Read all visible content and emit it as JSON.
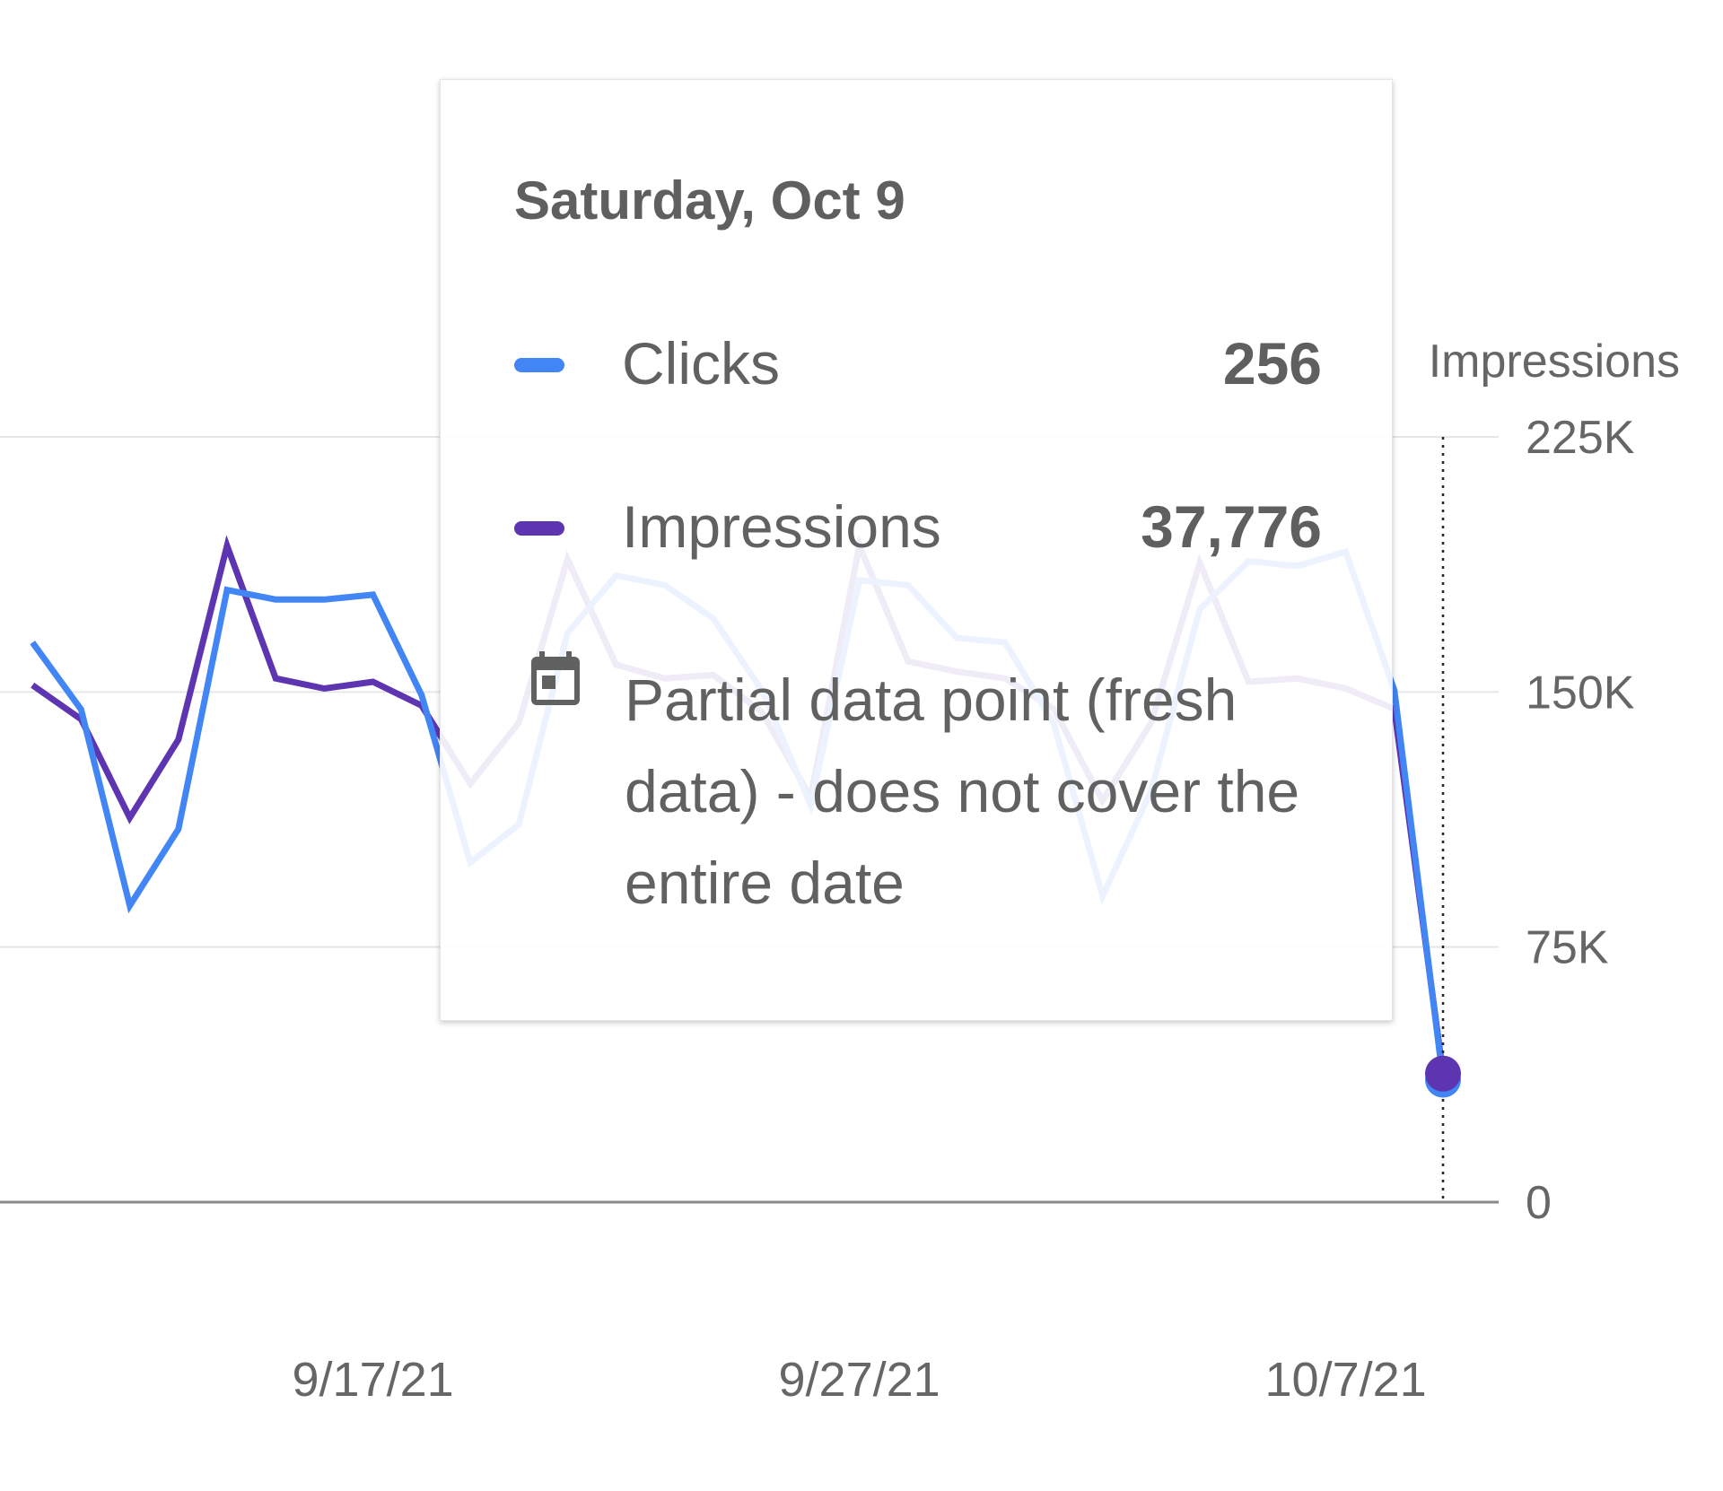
{
  "chart_data": {
    "type": "line",
    "x": [
      "9/10/21",
      "9/11/21",
      "9/12/21",
      "9/13/21",
      "9/14/21",
      "9/15/21",
      "9/16/21",
      "9/17/21",
      "9/18/21",
      "9/19/21",
      "9/20/21",
      "9/21/21",
      "9/22/21",
      "9/23/21",
      "9/24/21",
      "9/25/21",
      "9/26/21",
      "9/27/21",
      "9/28/21",
      "9/29/21",
      "9/30/21",
      "10/1/21",
      "10/2/21",
      "10/3/21",
      "10/4/21",
      "10/5/21",
      "10/6/21",
      "10/7/21",
      "10/8/21",
      "10/9/21"
    ],
    "xticks": [
      "9/17/21",
      "9/27/21",
      "10/7/21"
    ],
    "series": [
      {
        "name": "Clicks",
        "color": "#4285f4",
        "axis": "left",
        "values": [
          1170,
          1030,
          620,
          780,
          1280,
          1260,
          1260,
          1270,
          1060,
          710,
          790,
          1190,
          1310,
          1290,
          1220,
          1070,
          830,
          1300,
          1290,
          1180,
          1170,
          1000,
          640,
          860,
          1240,
          1340,
          1330,
          1360,
          1070,
          256
        ]
      },
      {
        "name": "Impressions",
        "color": "#5e35b1",
        "axis": "right",
        "values": [
          152000,
          142000,
          113000,
          136000,
          193000,
          154000,
          151000,
          153000,
          146000,
          123000,
          141000,
          189000,
          158000,
          154000,
          155000,
          144000,
          119000,
          193000,
          159000,
          156000,
          154000,
          145000,
          118000,
          141000,
          188000,
          153000,
          154000,
          151000,
          145000,
          37776
        ]
      }
    ],
    "right_axis": {
      "label": "Impressions",
      "ticks": [
        "0",
        "75K",
        "150K",
        "225K"
      ],
      "ylim": [
        0,
        225000
      ]
    },
    "left_axis": {
      "ylim": [
        0,
        1600
      ]
    },
    "grid": true
  },
  "tooltip": {
    "date": "Saturday, Oct 9",
    "rows": [
      {
        "label": "Clicks",
        "value": "256",
        "color": "#4285f4"
      },
      {
        "label": "Impressions",
        "value": "37,776",
        "color": "#5e35b1"
      }
    ],
    "note": "Partial data point (fresh data) - does not cover the entire date",
    "note_icon": "calendar-icon"
  }
}
